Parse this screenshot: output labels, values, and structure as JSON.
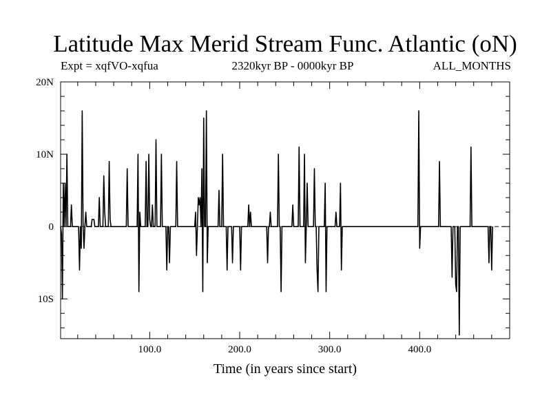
{
  "chart_data": {
    "type": "line",
    "title": "Latitude Max Merid Stream Func. Atlantic (oN)",
    "subtitle_left": "Expt = xqfVO-xqfua",
    "subtitle_center": "2320kyr BP - 0000kyr BP",
    "subtitle_right": "ALL_MONTHS",
    "xlabel": "Time (in years since start)",
    "ylabel": "",
    "xlim": [
      1,
      500
    ],
    "ylim": [
      -15.5,
      20
    ],
    "x_ticks": [
      100,
      200,
      300,
      400
    ],
    "x_tick_labels": [
      "100.0",
      "200.0",
      "300.0",
      "400.0"
    ],
    "y_ticks": [
      -10,
      0,
      10,
      20
    ],
    "y_tick_labels": [
      "10S",
      "0",
      "10N",
      "20N"
    ],
    "zero_line": true,
    "grid": false,
    "x_start": 1,
    "x_step": 1,
    "values": [
      0,
      -1,
      -10,
      6,
      0,
      6,
      0,
      10,
      0,
      0,
      0,
      0,
      3,
      0,
      0,
      0,
      0,
      0,
      0,
      0,
      0,
      -6,
      0,
      -3,
      16,
      0,
      -3,
      0,
      2,
      0,
      0,
      0,
      0,
      0,
      0,
      1,
      1,
      1,
      0,
      0,
      0,
      0,
      0,
      4,
      0,
      0,
      0,
      0,
      7,
      2,
      0,
      0,
      0,
      0,
      9,
      1,
      0,
      0,
      0,
      0,
      0,
      0,
      0,
      0,
      0,
      0,
      0,
      0,
      0,
      0,
      0,
      0,
      0,
      0,
      8,
      0,
      0,
      0,
      0,
      0,
      0,
      0,
      0,
      0,
      0,
      0,
      10,
      -9,
      2,
      0,
      0,
      0,
      0,
      0,
      0,
      9,
      0,
      0,
      10,
      1,
      0,
      0,
      3,
      0,
      0,
      0,
      12,
      0,
      0,
      0,
      0,
      0,
      10,
      0,
      0,
      0,
      0,
      0,
      -6,
      0,
      0,
      -5,
      0,
      0,
      0,
      0,
      0,
      0,
      0,
      9,
      0,
      0,
      0,
      0,
      0,
      0,
      0,
      0,
      0,
      0,
      0,
      0,
      0,
      0,
      0,
      0,
      0,
      0,
      0,
      0,
      2,
      -4,
      0,
      4,
      3,
      4,
      0,
      8,
      -9,
      15,
      0,
      0,
      16,
      -5,
      0,
      0,
      0,
      0,
      0,
      0,
      0,
      0,
      0,
      0,
      0,
      0,
      5,
      0,
      0,
      0,
      10,
      0,
      0,
      0,
      0,
      -6,
      0,
      0,
      0,
      0,
      0,
      -5,
      0,
      0,
      0,
      0,
      0,
      0,
      0,
      0,
      -6,
      0,
      0,
      0,
      0,
      0,
      0,
      0,
      0,
      3,
      0,
      2,
      0,
      0,
      0,
      0,
      0,
      0,
      0,
      0,
      0,
      0,
      0,
      0,
      0,
      0,
      0,
      0,
      0,
      0,
      -5,
      0,
      0,
      2,
      0,
      0,
      0,
      0,
      0,
      0,
      0,
      0,
      10,
      0,
      0,
      -9,
      0,
      0,
      0,
      0,
      0,
      0,
      0,
      0,
      0,
      0,
      0,
      0,
      3,
      0,
      0,
      0,
      0,
      0,
      0,
      11,
      0,
      0,
      0,
      0,
      0,
      10,
      -5,
      0,
      6,
      0,
      0,
      0,
      0,
      0,
      0,
      0,
      8,
      0,
      0,
      -6,
      -9,
      0,
      0,
      0,
      0,
      0,
      0,
      0,
      6,
      -9,
      0,
      0,
      0,
      0,
      0,
      0,
      0,
      0,
      0,
      0,
      2,
      0,
      0,
      0,
      0,
      6,
      -6,
      0,
      0,
      0,
      0,
      0,
      0,
      0,
      0,
      0,
      0,
      0,
      0,
      0,
      0,
      0,
      0,
      0,
      0,
      0,
      0,
      0,
      0,
      0,
      0,
      0,
      0,
      0,
      0,
      0,
      0,
      0,
      0,
      0,
      0,
      0,
      0,
      0,
      0,
      0,
      0,
      0,
      0,
      0,
      0,
      0,
      0,
      0,
      0,
      0,
      0,
      0,
      0,
      0,
      0,
      0,
      0,
      0,
      0,
      0,
      0,
      0,
      0,
      0,
      0,
      0,
      0,
      0,
      0,
      0,
      0,
      0,
      0,
      0,
      0,
      0,
      0,
      0,
      0,
      0,
      0,
      0,
      0,
      0,
      0,
      0,
      16,
      -3,
      0,
      0,
      0,
      0,
      0,
      0,
      0,
      0,
      0,
      0,
      0,
      0,
      0,
      0,
      0,
      0,
      0,
      0,
      0,
      0,
      0,
      9,
      0,
      0,
      0,
      0,
      0,
      0,
      0,
      0,
      0,
      0,
      0,
      0,
      0,
      -7,
      0,
      0,
      0,
      -8,
      -9,
      0,
      0,
      -15,
      0,
      0,
      0,
      0,
      0,
      0,
      0,
      0,
      0,
      0,
      0,
      0,
      11,
      0,
      0,
      0,
      0,
      0,
      0,
      0,
      0,
      0,
      0,
      0,
      0,
      0,
      0,
      0,
      0,
      0,
      0,
      0,
      -5,
      0,
      0,
      -6,
      0
    ]
  }
}
